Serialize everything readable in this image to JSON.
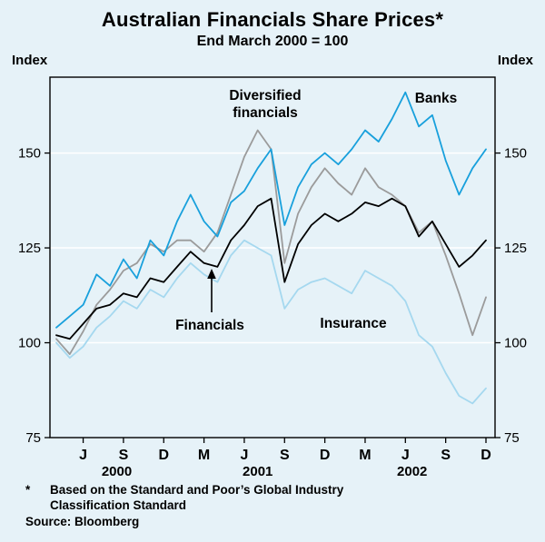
{
  "header": {
    "title": "Australian Financials Share Prices*",
    "subtitle": "End March 2000 = 100"
  },
  "axes": {
    "y_label_left": "Index",
    "y_label_right": "Index"
  },
  "annotations": {
    "diversified": "Diversified\nfinancials",
    "banks": "Banks",
    "financials": "Financials",
    "insurance": "Insurance"
  },
  "footnotes": {
    "asterisk": "*",
    "line1": "Based on the Standard and Poor’s Global Industry",
    "line2": "Classification Standard",
    "source": "Source: Bloomberg"
  },
  "chart_data": {
    "type": "line",
    "title": "Australian Financials Share Prices*",
    "subtitle": "End March 2000 = 100",
    "ylabel": "Index",
    "ylim": [
      75,
      170
    ],
    "yticks": [
      75,
      100,
      125,
      150
    ],
    "grid": "horizontal white gridlines on light blue background",
    "legend_position": "in-plot text annotations",
    "colors": {
      "plot_bg": "#e6f2f8",
      "grid": "#ffffff",
      "frame": "#000000"
    },
    "months": [
      "Apr-00",
      "May-00",
      "Jun-00",
      "Jul-00",
      "Aug-00",
      "Sep-00",
      "Oct-00",
      "Nov-00",
      "Dec-00",
      "Jan-01",
      "Feb-01",
      "Mar-01",
      "Apr-01",
      "May-01",
      "Jun-01",
      "Jul-01",
      "Aug-01",
      "Sep-01",
      "Oct-01",
      "Nov-01",
      "Dec-01",
      "Jan-02",
      "Feb-02",
      "Mar-02",
      "Apr-02",
      "May-02",
      "Jun-02",
      "Jul-02",
      "Aug-02",
      "Sep-02",
      "Oct-02",
      "Nov-02",
      "Dec-02"
    ],
    "xticks": [
      {
        "label": "J",
        "month_index": 2
      },
      {
        "label": "S",
        "month_index": 5
      },
      {
        "label": "D",
        "month_index": 8
      },
      {
        "label": "M",
        "month_index": 11
      },
      {
        "label": "J",
        "month_index": 14
      },
      {
        "label": "S",
        "month_index": 17
      },
      {
        "label": "D",
        "month_index": 20
      },
      {
        "label": "M",
        "month_index": 23
      },
      {
        "label": "J",
        "month_index": 26
      },
      {
        "label": "S",
        "month_index": 29
      },
      {
        "label": "D",
        "month_index": 32
      }
    ],
    "year_labels": [
      {
        "label": "2000",
        "month_index": 4.5
      },
      {
        "label": "2001",
        "month_index": 15
      },
      {
        "label": "2002",
        "month_index": 26.5
      }
    ],
    "series": [
      {
        "name": "Banks",
        "color": "#18a0dc",
        "values": [
          104,
          107,
          110,
          118,
          115,
          122,
          117,
          127,
          123,
          132,
          139,
          132,
          128,
          137,
          140,
          146,
          151,
          131,
          141,
          147,
          150,
          147,
          151,
          156,
          153,
          159,
          166,
          157,
          160,
          148,
          139,
          146,
          151
        ]
      },
      {
        "name": "Diversified financials",
        "color": "#9b9b9b",
        "values": [
          101,
          97,
          103,
          110,
          114,
          119,
          121,
          126,
          124,
          127,
          127,
          124,
          129,
          139,
          149,
          156,
          151,
          121,
          134,
          141,
          146,
          142,
          139,
          146,
          141,
          139,
          136,
          129,
          132,
          123,
          113,
          102,
          112
        ]
      },
      {
        "name": "Financials",
        "color": "#000000",
        "values": [
          102,
          101,
          105,
          109,
          110,
          113,
          112,
          117,
          116,
          120,
          124,
          121,
          120,
          127,
          131,
          136,
          138,
          116,
          126,
          131,
          134,
          132,
          134,
          137,
          136,
          138,
          136,
          128,
          132,
          126,
          120,
          123,
          127
        ]
      },
      {
        "name": "Insurance",
        "color": "#a5d8ef",
        "values": [
          100,
          96,
          99,
          104,
          107,
          111,
          109,
          114,
          112,
          117,
          121,
          118,
          116,
          123,
          127,
          125,
          123,
          109,
          114,
          116,
          117,
          115,
          113,
          119,
          117,
          115,
          111,
          102,
          99,
          92,
          86,
          84,
          88
        ]
      }
    ]
  }
}
